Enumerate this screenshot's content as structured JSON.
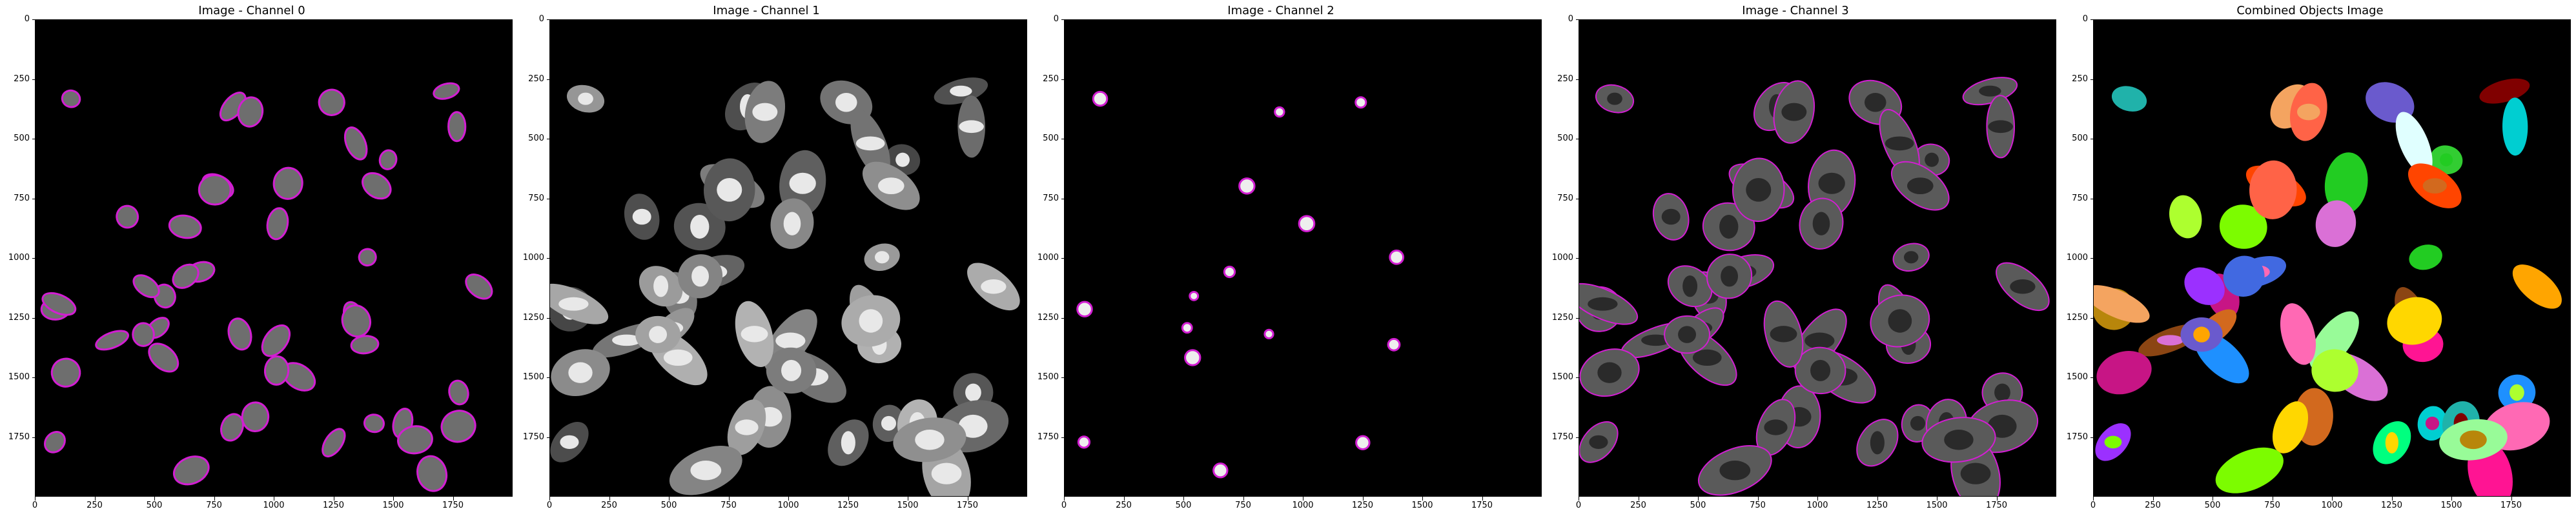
{
  "panels": [
    {
      "title": "Image - Channel 0",
      "type": "nuclei"
    },
    {
      "title": "Image - Channel 1",
      "type": "cells_gray"
    },
    {
      "title": "Image - Channel 2",
      "type": "spots"
    },
    {
      "title": "Image - Channel 3",
      "type": "cells_outlined"
    },
    {
      "title": "Combined Objects Image",
      "type": "labels"
    }
  ],
  "axes": {
    "x_ticks": [
      "0",
      "250",
      "500",
      "750",
      "1000",
      "1250",
      "1500",
      "1750"
    ],
    "y_ticks": [
      "0",
      "250",
      "500",
      "750",
      "1000",
      "1250",
      "1500",
      "1750"
    ],
    "extent": 2000
  },
  "colors": {
    "outline": "#d21ed2",
    "background": "#000000"
  }
}
